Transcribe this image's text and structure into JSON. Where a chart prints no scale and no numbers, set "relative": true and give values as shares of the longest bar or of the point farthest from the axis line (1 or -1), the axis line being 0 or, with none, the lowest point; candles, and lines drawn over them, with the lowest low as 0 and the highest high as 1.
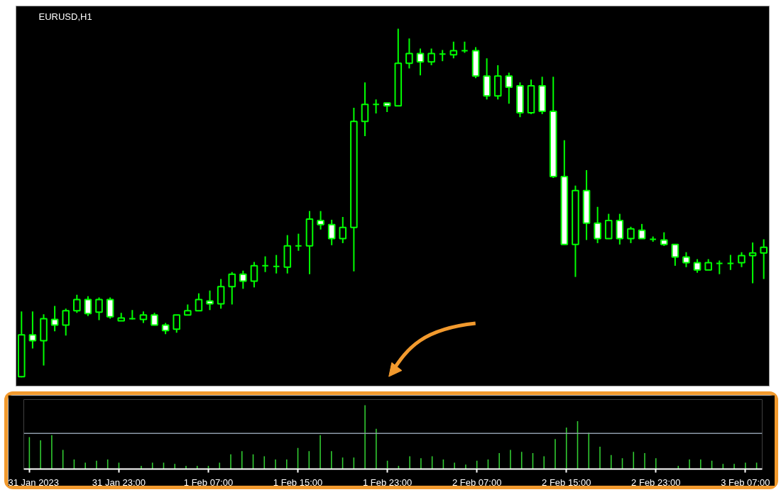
{
  "chart_data": [
    {
      "type": "candlestick",
      "title": "EURUSD,H1",
      "relative": true,
      "tick_labels": false,
      "color": "#00ff00",
      "categories": [
        null,
        null,
        null,
        null,
        null,
        null,
        null,
        null,
        null,
        null,
        null,
        null,
        null,
        null,
        null,
        null,
        null,
        null,
        null,
        null,
        null,
        null,
        null,
        null,
        null,
        null,
        null,
        null,
        null,
        null,
        null,
        null,
        null,
        null,
        null,
        null,
        null,
        null,
        null,
        null,
        null,
        null,
        null,
        null,
        null,
        null,
        null,
        null,
        null,
        null,
        null,
        null,
        null,
        null,
        null,
        null,
        null,
        null,
        null,
        null,
        null,
        null,
        null,
        null,
        null,
        null,
        null,
        null
      ],
      "ohlc": [
        [
          0.002,
          0.189,
          0,
          0.122
        ],
        [
          0.122,
          0.189,
          0.083,
          0.105
        ],
        [
          0.105,
          0.181,
          0.034,
          0.168
        ],
        [
          0.166,
          0.205,
          0.132,
          0.15
        ],
        [
          0.15,
          0.197,
          0.12,
          0.191
        ],
        [
          0.191,
          0.237,
          0.185,
          0.223
        ],
        [
          0.223,
          0.233,
          0.176,
          0.183
        ],
        [
          0.187,
          0.229,
          0.164,
          0.223
        ],
        [
          0.223,
          0.229,
          0.168,
          0.174
        ],
        [
          0.162,
          0.185,
          0.162,
          0.17
        ],
        [
          0.168,
          0.193,
          0.166,
          0.168
        ],
        [
          0.166,
          0.189,
          0.156,
          0.179
        ],
        [
          0.179,
          0.185,
          0.15,
          0.15
        ],
        [
          0.15,
          0.156,
          0.124,
          0.134
        ],
        [
          0.138,
          0.179,
          0.128,
          0.179
        ],
        [
          0.179,
          0.209,
          0.179,
          0.191
        ],
        [
          0.191,
          0.241,
          0.191,
          0.223
        ],
        [
          0.219,
          0.249,
          0.193,
          0.211
        ],
        [
          0.211,
          0.282,
          0.197,
          0.26
        ],
        [
          0.26,
          0.302,
          0.209,
          0.296
        ],
        [
          0.296,
          0.306,
          0.254,
          0.276
        ],
        [
          0.276,
          0.331,
          0.258,
          0.32
        ],
        [
          0.32,
          0.347,
          0.302,
          0.32
        ],
        [
          0.318,
          0.351,
          0.298,
          0.318
        ],
        [
          0.316,
          0.408,
          0.298,
          0.377
        ],
        [
          0.377,
          0.412,
          0.363,
          0.377
        ],
        [
          0.377,
          0.477,
          0.296,
          0.454
        ],
        [
          0.45,
          0.477,
          0.424,
          0.438
        ],
        [
          0.438,
          0.452,
          0.379,
          0.398
        ],
        [
          0.398,
          0.46,
          0.385,
          0.43
        ],
        [
          0.43,
          0.773,
          0.304,
          0.734
        ],
        [
          0.734,
          0.846,
          0.692,
          0.783
        ],
        [
          0.783,
          0.797,
          0.757,
          0.783
        ],
        [
          0.787,
          0.787,
          0.761,
          0.779
        ],
        [
          0.779,
          1.0,
          0.779,
          0.901
        ],
        [
          0.901,
          0.972,
          0.886,
          0.929
        ],
        [
          0.929,
          0.943,
          0.866,
          0.905
        ],
        [
          0.905,
          0.943,
          0.895,
          0.929
        ],
        [
          0.927,
          0.939,
          0.907,
          0.927
        ],
        [
          0.925,
          0.963,
          0.915,
          0.937
        ],
        [
          0.937,
          0.963,
          0.931,
          0.937
        ],
        [
          0.937,
          0.947,
          0.858,
          0.864
        ],
        [
          0.864,
          0.915,
          0.797,
          0.807
        ],
        [
          0.807,
          0.895,
          0.797,
          0.864
        ],
        [
          0.864,
          0.874,
          0.785,
          0.832
        ],
        [
          0.836,
          0.846,
          0.746,
          0.759
        ],
        [
          0.759,
          0.854,
          0.755,
          0.836
        ],
        [
          0.836,
          0.862,
          0.755,
          0.763
        ],
        [
          0.763,
          0.862,
          0.572,
          0.576
        ],
        [
          0.576,
          0.68,
          0.381,
          0.381
        ],
        [
          0.381,
          0.55,
          0.288,
          0.536
        ],
        [
          0.536,
          0.594,
          0.394,
          0.442
        ],
        [
          0.442,
          0.489,
          0.385,
          0.398
        ],
        [
          0.398,
          0.469,
          0.398,
          0.45
        ],
        [
          0.45,
          0.469,
          0.381,
          0.398
        ],
        [
          0.398,
          0.432,
          0.385,
          0.426
        ],
        [
          0.422,
          0.44,
          0.398,
          0.398
        ],
        [
          0.396,
          0.404,
          0.389,
          0.396
        ],
        [
          0.394,
          0.416,
          0.377,
          0.381
        ],
        [
          0.381,
          0.381,
          0.32,
          0.345
        ],
        [
          0.345,
          0.359,
          0.316,
          0.329
        ],
        [
          0.329,
          0.339,
          0.3,
          0.308
        ],
        [
          0.308,
          0.339,
          0.308,
          0.329
        ],
        [
          0.327,
          0.335,
          0.296,
          0.327
        ],
        [
          0.327,
          0.351,
          0.308,
          0.327
        ],
        [
          0.329,
          0.359,
          0.316,
          0.349
        ],
        [
          0.349,
          0.387,
          0.27,
          0.357
        ],
        [
          0.357,
          0.396,
          0.282,
          0.373
        ]
      ]
    },
    {
      "type": "bar",
      "relative": true,
      "tick_labels": "x",
      "color": "#32cd32",
      "xlim": [
        "2023-01-31T14:30",
        "2023-02-03T08:30"
      ],
      "xticks": [
        {
          "value": "2023-01-31T15:00",
          "label": "31 Jan 2023"
        },
        {
          "value": "2023-01-31T23:00",
          "label": "31 Jan 23:00"
        },
        {
          "value": "2023-02-01T07:00",
          "label": "1 Feb 07:00"
        },
        {
          "value": "2023-02-01T15:00",
          "label": "1 Feb 15:00"
        },
        {
          "value": "2023-02-01T23:00",
          "label": "1 Feb 23:00"
        },
        {
          "value": "2023-02-02T07:00",
          "label": "2 Feb 07:00"
        },
        {
          "value": "2023-02-02T15:00",
          "label": "2 Feb 15:00"
        },
        {
          "value": "2023-02-02T23:00",
          "label": "2 Feb 23:00"
        },
        {
          "value": "2023-02-03T07:00",
          "label": "3 Feb 07:00"
        }
      ],
      "ref_lines": [
        {
          "axis": "y",
          "value": 0.56,
          "color": "#8c9aa8"
        }
      ],
      "x": [
        "2023-01-31T15:00",
        "2023-01-31T16:00",
        "2023-01-31T17:00",
        "2023-01-31T18:00",
        "2023-01-31T19:00",
        "2023-01-31T20:00",
        "2023-01-31T21:00",
        "2023-01-31T22:00",
        "2023-01-31T23:00",
        "2023-02-01T00:00",
        "2023-02-01T01:00",
        "2023-02-01T02:00",
        "2023-02-01T03:00",
        "2023-02-01T04:00",
        "2023-02-01T05:00",
        "2023-02-01T06:00",
        "2023-02-01T07:00",
        "2023-02-01T08:00",
        "2023-02-01T09:00",
        "2023-02-01T10:00",
        "2023-02-01T11:00",
        "2023-02-01T12:00",
        "2023-02-01T13:00",
        "2023-02-01T14:00",
        "2023-02-01T15:00",
        "2023-02-01T16:00",
        "2023-02-01T17:00",
        "2023-02-01T18:00",
        "2023-02-01T19:00",
        "2023-02-01T20:00",
        "2023-02-01T21:00",
        "2023-02-01T22:00",
        "2023-02-01T23:00",
        "2023-02-02T00:00",
        "2023-02-02T01:00",
        "2023-02-02T02:00",
        "2023-02-02T03:00",
        "2023-02-02T04:00",
        "2023-02-02T05:00",
        "2023-02-02T06:00",
        "2023-02-02T07:00",
        "2023-02-02T08:00",
        "2023-02-02T09:00",
        "2023-02-02T10:00",
        "2023-02-02T11:00",
        "2023-02-02T12:00",
        "2023-02-02T13:00",
        "2023-02-02T14:00",
        "2023-02-02T15:00",
        "2023-02-02T16:00",
        "2023-02-02T17:00",
        "2023-02-02T18:00",
        "2023-02-02T19:00",
        "2023-02-02T20:00",
        "2023-02-02T21:00",
        "2023-02-02T22:00",
        "2023-02-02T23:00",
        "2023-02-03T00:00",
        "2023-02-03T01:00",
        "2023-02-03T02:00",
        "2023-02-03T03:00",
        "2023-02-03T04:00",
        "2023-02-03T05:00",
        "2023-02-03T06:00",
        "2023-02-03T07:00",
        "2023-02-03T08:00"
      ],
      "values": [
        0.5,
        0.45,
        0.53,
        0.3,
        0.15,
        0.1,
        0.13,
        0.15,
        0.1,
        null,
        0.05,
        0.1,
        0.1,
        0.08,
        0.05,
        0.05,
        0.05,
        0.1,
        0.23,
        0.28,
        0.23,
        0.2,
        0.15,
        0.15,
        0.33,
        0.28,
        0.53,
        0.28,
        0.18,
        0.18,
        1.0,
        0.63,
        0.13,
        0.05,
        0.2,
        0.17,
        0.2,
        0.15,
        0.1,
        0.07,
        0.13,
        0.15,
        0.25,
        0.3,
        0.27,
        0.25,
        0.2,
        0.47,
        0.65,
        0.75,
        0.57,
        0.35,
        0.22,
        0.17,
        0.27,
        0.25,
        0.17,
        null,
        0.05,
        0.15,
        0.15,
        0.13,
        0.08,
        0.08,
        0.1,
        0.1
      ]
    }
  ]
}
